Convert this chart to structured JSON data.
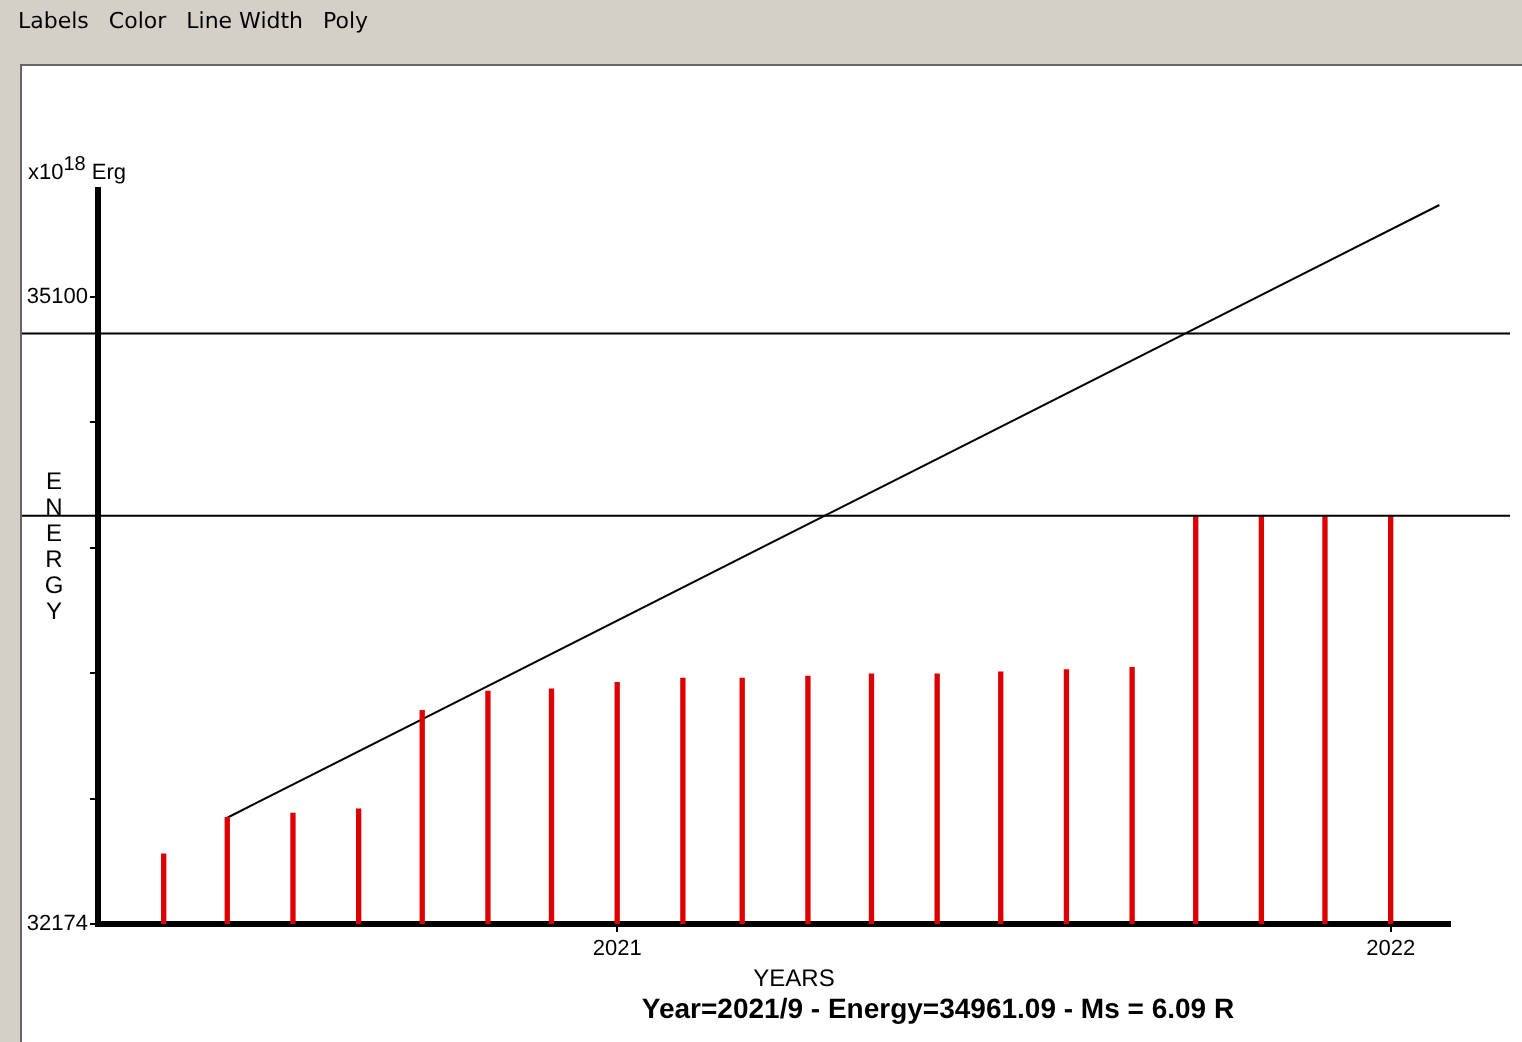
{
  "chart_data": {
    "type": "bar",
    "xlabel": "YEARS",
    "ylabel": "ENERGY",
    "annotations": [
      "Labels",
      "Color",
      "Line Width",
      "Poly",
      "x10$^{18}$ Erg",
      "Year=2021/9 - Energy=34961.09 - Ms = 6.09 R"
    ],
    "x": [
      "2020-06",
      "2020-07",
      "2020-08",
      "2020-09",
      "2020-10",
      "2020-11",
      "2020-12",
      "2021-01",
      "2021-02",
      "2021-03",
      "2021-04",
      "2021-05",
      "2021-06",
      "2021-07",
      "2021-08",
      "2021-09",
      "2021-10",
      "2021-11",
      "2021-12",
      "2022-01"
    ],
    "series": [
      {
        "color": "#dd0000",
        "values": [
          32500,
          32670,
          32690,
          32710,
          33170,
          33260,
          33270,
          33300,
          33320,
          33320,
          33330,
          33340,
          33340,
          33350,
          33360,
          33370,
          34080,
          34080,
          34080,
          34080
        ]
      },
      {
        "type": "line",
        "color": "#000000",
        "x": [
          "2020-07",
          "2022-01-24"
        ],
        "values": [
          32670,
          35530
        ]
      }
    ],
    "xlim": [
      "2020-05",
      "2022-01-29"
    ],
    "xticks": [
      "2021",
      "2022"
    ],
    "ylim": [
      32174,
      35600
    ],
    "yticks": [
      32174,
      {
        "value": 32759,
        "label": null
      },
      {
        "value": 33344,
        "label": null
      },
      {
        "value": 33930,
        "label": null
      },
      {
        "value": 34515,
        "label": null
      },
      35100
    ],
    "ref_lines": [
      {
        "axis": "y",
        "value": 34930,
        "color": "#000000"
      },
      {
        "axis": "y",
        "value": 34080,
        "color": "#000000"
      }
    ],
    "grid": false,
    "legend": false
  }
}
